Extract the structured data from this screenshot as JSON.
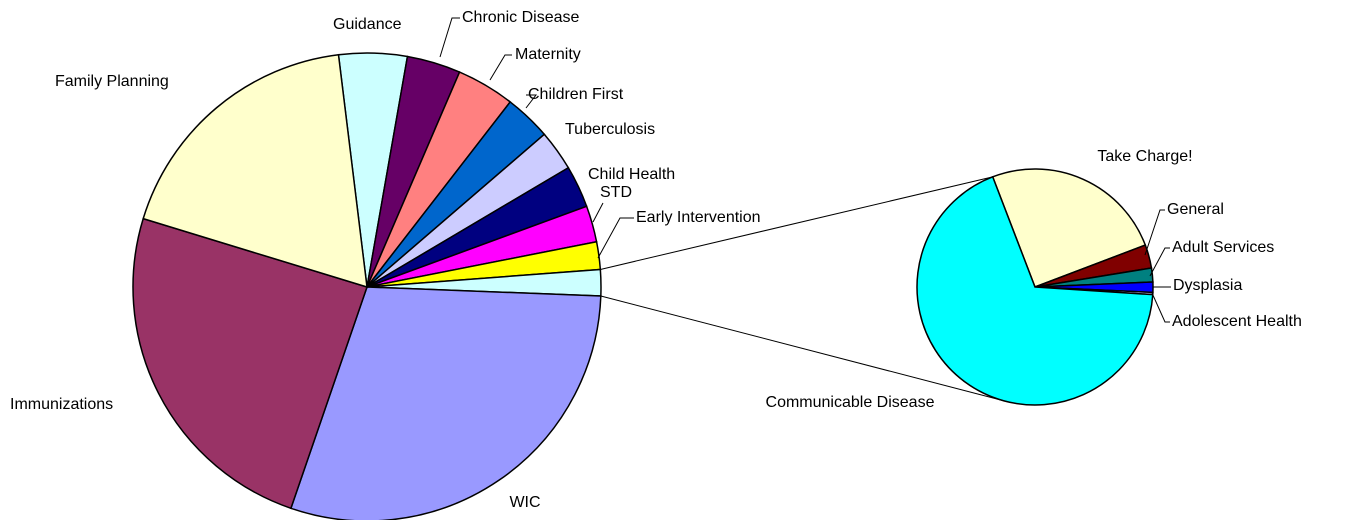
{
  "chart_data": [
    {
      "type": "pie",
      "categories": [
        "Guidance",
        "Chronic Disease",
        "Maternity",
        "Children First",
        "Tuberculosis",
        "Child Health",
        "STD",
        "Early Intervention",
        null,
        "WIC",
        "Immunizations",
        "Family Planning"
      ],
      "values": [
        4.7,
        3.7,
        4.0,
        3.2,
        2.8,
        2.9,
        2.5,
        1.9,
        1.8,
        29.6,
        24.4,
        18.3
      ],
      "colors": [
        "#ccffff",
        "#660066",
        "#ff8080",
        "#0066cc",
        "#ccccff",
        "#000080",
        "#ff00ff",
        "#ffff00",
        "#ccffff",
        "#9999ff",
        "#993366",
        "#ffffcc"
      ]
    },
    {
      "type": "pie",
      "categories": [
        "Take Charge!",
        "General",
        "Adult Services",
        "Dysplasia",
        "Adolescent Health",
        "Communicable Disease"
      ],
      "values": [
        25,
        3.2,
        1.9,
        1.4,
        0.3,
        68
      ],
      "colors": [
        "#ffffcc",
        "#800000",
        "#008080",
        "#0000ff",
        "#ccccff",
        "#00ffff"
      ]
    }
  ]
}
